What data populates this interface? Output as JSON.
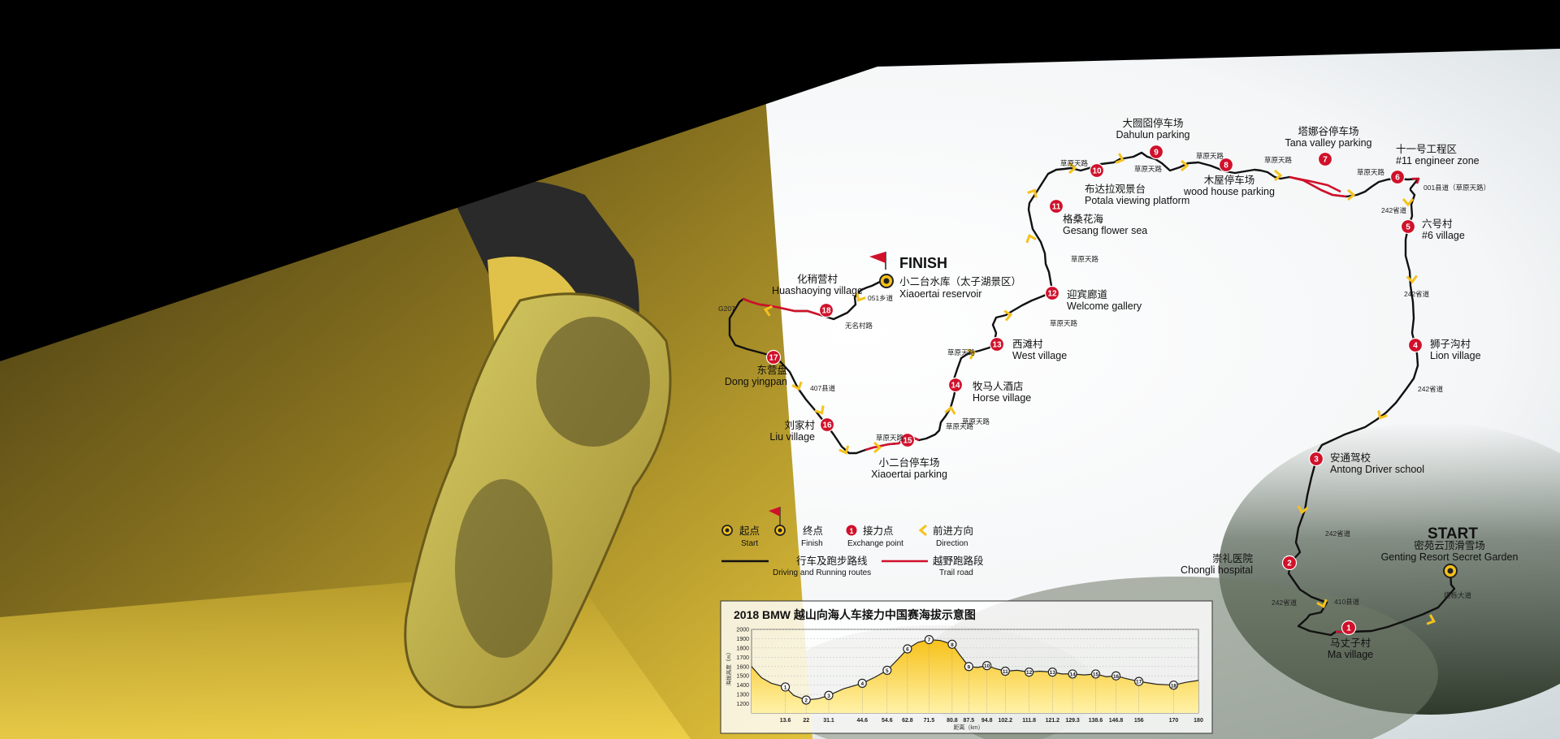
{
  "start": {
    "label": "START",
    "name_cn": "密苑云顶滑雪场",
    "name_en": "Genting Resort Secret Garden"
  },
  "finish": {
    "label": "FINISH",
    "name_cn": "小二台水库（太子湖景区）",
    "name_en": "Xiaoertai reservoir"
  },
  "checkpoints": [
    {
      "num": "1",
      "cn": "马丈子村",
      "en": "Ma village"
    },
    {
      "num": "2",
      "cn": "崇礼医院",
      "en": "Chongli hospital"
    },
    {
      "num": "3",
      "cn": "安通驾校",
      "en": "Antong Driver school"
    },
    {
      "num": "4",
      "cn": "狮子沟村",
      "en": "Lion village"
    },
    {
      "num": "5",
      "cn": "六号村",
      "en": "#6 village"
    },
    {
      "num": "6",
      "cn": "十一号工程区",
      "en": "#11 engineer zone"
    },
    {
      "num": "7",
      "cn": "塔娜谷停车场",
      "en": "Tana valley parking"
    },
    {
      "num": "8",
      "cn": "木屋停车场",
      "en": "wood house parking"
    },
    {
      "num": "9",
      "cn": "大囫囵停车场",
      "en": "Dahulun parking"
    },
    {
      "num": "10",
      "cn": "布达拉观景台",
      "en": "Potala viewing platform"
    },
    {
      "num": "11",
      "cn": "格桑花海",
      "en": "Gesang flower sea"
    },
    {
      "num": "12",
      "cn": "迎宾廊道",
      "en": "Welcome gallery"
    },
    {
      "num": "13",
      "cn": "西滩村",
      "en": "West village"
    },
    {
      "num": "14",
      "cn": "牧马人酒店",
      "en": "Horse village"
    },
    {
      "num": "15",
      "cn": "小二台停车场",
      "en": "Xiaoertai parking"
    },
    {
      "num": "16",
      "cn": "刘家村",
      "en": "Liu village"
    },
    {
      "num": "17",
      "cn": "东营盘",
      "en": "Dong yingpan"
    },
    {
      "num": "18",
      "cn": "化稍营村",
      "en": "Huashaoying village"
    }
  ],
  "roads": [
    "草原天路",
    "草原天路",
    "草原天路",
    "草原天路",
    "草原天路",
    "草原天路",
    "草原天路",
    "草原天路",
    "草原天路",
    "草原天路",
    "草原天路",
    "242省道",
    "242省道",
    "242省道",
    "242省道",
    "242省道",
    "410县道",
    "塔栎大道",
    "001县道（草原天路）",
    "407县道",
    "051乡道",
    "无名村路",
    "G207"
  ],
  "legend": {
    "start_cn": "起点",
    "start_en": "Start",
    "finish_cn": "终点",
    "finish_en": "Finish",
    "exchange_cn": "接力点",
    "exchange_en": "Exchange point",
    "direction_cn": "前进方向",
    "direction_en": "Direction",
    "route_cn": "行车及跑步路线",
    "route_en": "Driving and Running routes",
    "trail_cn": "越野跑路段",
    "trail_en": "Trail road"
  },
  "elevation": {
    "title": "2018 BMW 越山向海人车接力中国赛海拔示意图",
    "ylabel": "海拔高度（m）",
    "xlabel": "距离（km）",
    "yticks": [
      "2000",
      "1900",
      "1800",
      "1700",
      "1600",
      "1500",
      "1400",
      "1300",
      "1200"
    ],
    "xticks": [
      "13.6",
      "22",
      "31.1",
      "44.6",
      "54.6",
      "62.8",
      "71.5",
      "80.8",
      "87.5",
      "94.8",
      "102.2",
      "111.8",
      "121.2",
      "129.3",
      "138.6",
      "146.8",
      "156",
      "170",
      "180"
    ]
  },
  "colors": {
    "accent_yellow": "#f5c21b",
    "exchange_red": "#d0112b",
    "route": "#111111",
    "trail": "#d0112b"
  },
  "chart_data": {
    "type": "area",
    "title": "2018 BMW 越山向海人车接力中国赛海拔示意图",
    "xlabel": "距离（km）",
    "ylabel": "海拔高度（m）",
    "ylim": [
      1100,
      2000
    ],
    "xlim": [
      0,
      180
    ],
    "x": [
      0,
      4,
      8,
      13.6,
      17,
      22,
      27,
      31.1,
      37,
      44.6,
      50,
      54.6,
      59,
      62.8,
      67,
      71.5,
      76,
      80.8,
      84,
      87.5,
      91,
      94.8,
      98,
      102.2,
      107,
      111.8,
      116,
      121.2,
      125,
      129.3,
      134,
      138.6,
      143,
      146.8,
      151,
      156,
      163,
      170,
      175,
      180
    ],
    "series": [
      {
        "values": [
          1600,
          1480,
          1420,
          1380,
          1290,
          1240,
          1255,
          1290,
          1360,
          1420,
          1490,
          1560,
          1680,
          1790,
          1860,
          1890,
          1880,
          1840,
          1720,
          1600,
          1590,
          1610,
          1580,
          1550,
          1560,
          1540,
          1550,
          1540,
          1520,
          1520,
          1510,
          1520,
          1490,
          1500,
          1470,
          1440,
          1410,
          1400,
          1430,
          1450
        ]
      }
    ],
    "markers": [
      {
        "num": "1",
        "x": 13.6
      },
      {
        "num": "2",
        "x": 22
      },
      {
        "num": "3",
        "x": 31.1
      },
      {
        "num": "4",
        "x": 44.6
      },
      {
        "num": "5",
        "x": 54.6
      },
      {
        "num": "6",
        "x": 62.8
      },
      {
        "num": "7",
        "x": 71.5
      },
      {
        "num": "8",
        "x": 80.8
      },
      {
        "num": "9",
        "x": 87.5
      },
      {
        "num": "10",
        "x": 94.8
      },
      {
        "num": "11",
        "x": 102.2
      },
      {
        "num": "12",
        "x": 111.8
      },
      {
        "num": "13",
        "x": 121.2
      },
      {
        "num": "14",
        "x": 129.3
      },
      {
        "num": "15",
        "x": 138.6
      },
      {
        "num": "16",
        "x": 146.8
      },
      {
        "num": "17",
        "x": 156
      },
      {
        "num": "18",
        "x": 170
      }
    ]
  }
}
